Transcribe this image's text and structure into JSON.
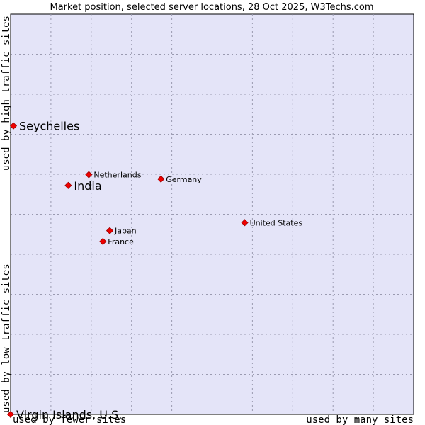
{
  "chart_data": {
    "type": "scatter",
    "title": "Market position, selected server locations, 28 Oct 2025, W3Techs.com",
    "xlabel_left": "used by fewer sites",
    "xlabel_right": "used by many sites",
    "ylabel_bottom": "used by low traffic sites",
    "ylabel_top": "used by high traffic sites",
    "xlim": [
      0,
      100
    ],
    "ylim": [
      0,
      100
    ],
    "grid": true,
    "colors": {
      "plot_bg": "#e4e4f8",
      "grid": "#9a9ab0",
      "point": "#ee0000",
      "point_edge": "#990000"
    },
    "points": [
      {
        "name": "Seychelles",
        "x": 0.7,
        "y": 72.1,
        "emphasis": true
      },
      {
        "name": "India",
        "x": 14.3,
        "y": 57.2,
        "emphasis": true
      },
      {
        "name": "Netherlands",
        "x": 19.4,
        "y": 59.9,
        "emphasis": false
      },
      {
        "name": "Germany",
        "x": 37.3,
        "y": 58.8,
        "emphasis": false
      },
      {
        "name": "United States",
        "x": 58.1,
        "y": 47.9,
        "emphasis": false
      },
      {
        "name": "Japan",
        "x": 24.6,
        "y": 45.9,
        "emphasis": false
      },
      {
        "name": "France",
        "x": 22.9,
        "y": 43.2,
        "emphasis": false
      },
      {
        "name": "Virgin Islands, U.S.",
        "x": 0.0,
        "y": 0.0,
        "emphasis": true
      }
    ]
  }
}
